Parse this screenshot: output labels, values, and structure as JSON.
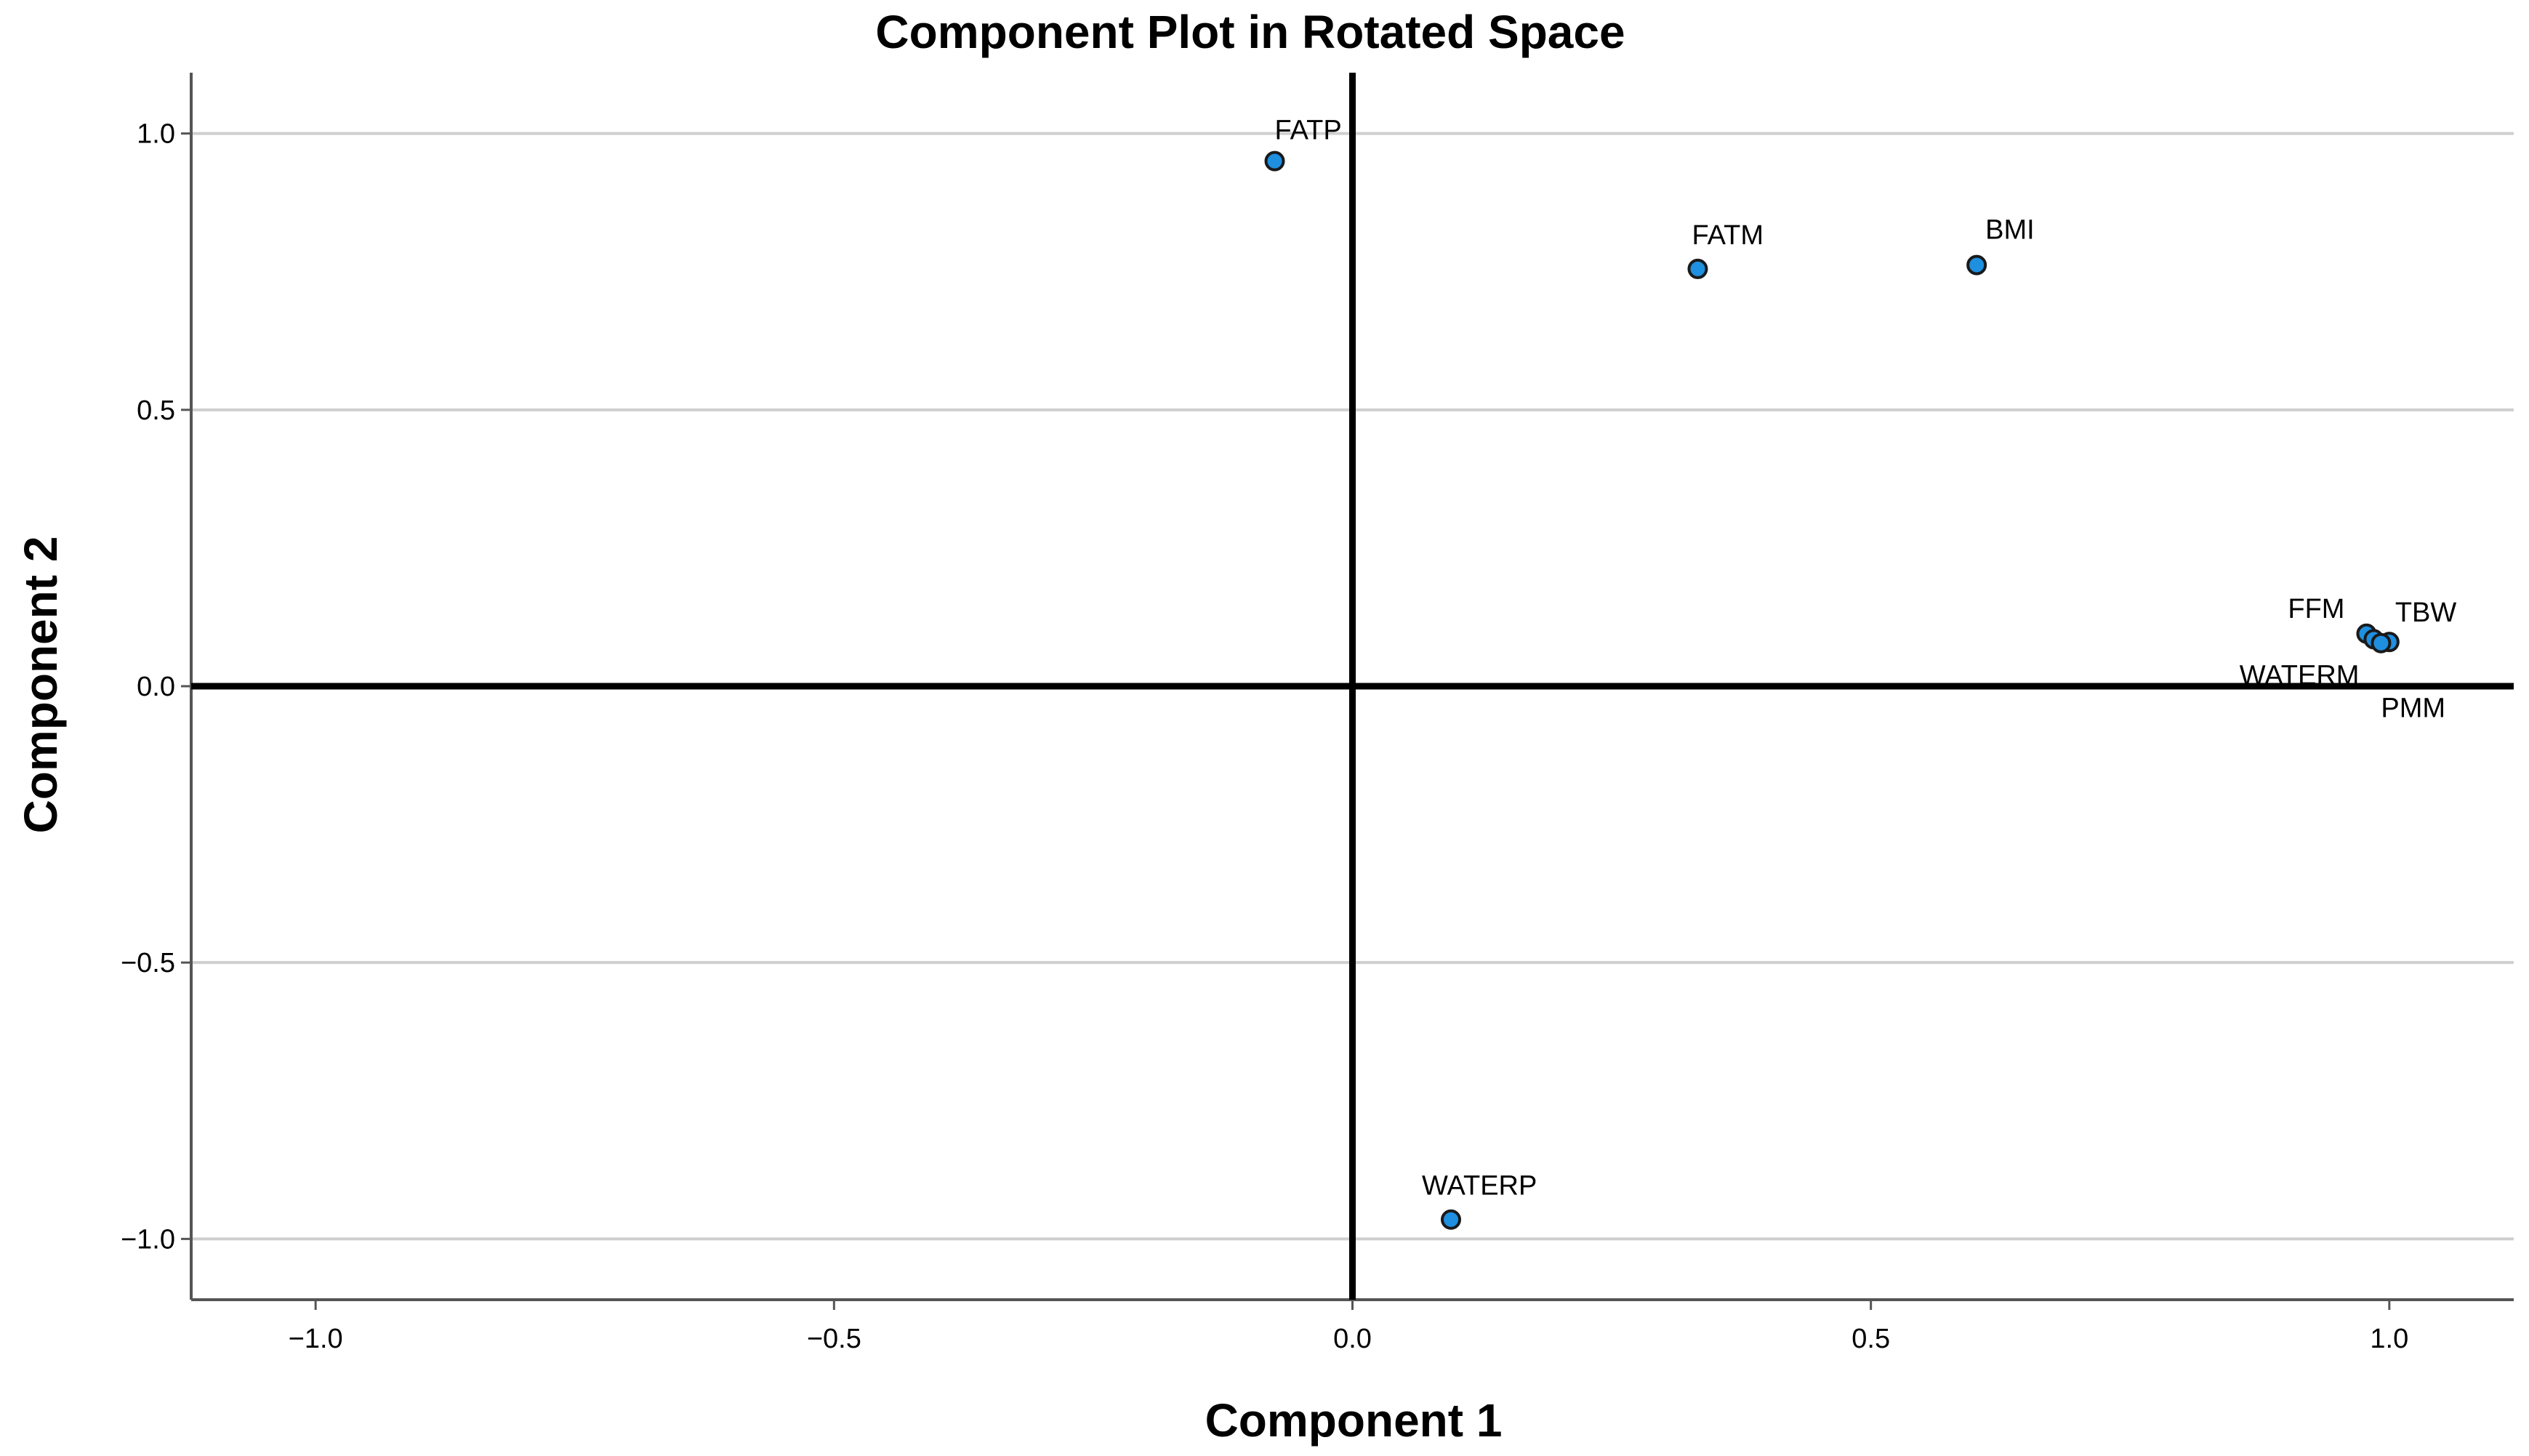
{
  "chart_data": {
    "type": "scatter",
    "title": "Component Plot in Rotated Space",
    "xlabel": "Component 1",
    "ylabel": "Component 2",
    "xlim": [
      -1.12,
      1.12
    ],
    "ylim": [
      -1.11,
      1.11
    ],
    "xticks": [
      -1.0,
      -0.5,
      0.0,
      0.5,
      1.0
    ],
    "xtick_labels": [
      "−1.0",
      "−0.5",
      "0.0",
      "0.5",
      "1.0"
    ],
    "yticks": [
      1.0,
      0.5,
      0.0,
      -0.5,
      -1.0
    ],
    "ytick_labels": [
      "1.0",
      "0.5",
      "0.0",
      "−0.5",
      "−1.0"
    ],
    "grid": "horizontal",
    "reference_lines": {
      "x": 0,
      "y": 0
    },
    "point_color": "#1f8fe0",
    "points": [
      {
        "label": "FATP",
        "x": -0.075,
        "y": 0.95
      },
      {
        "label": "FATM",
        "x": 0.333,
        "y": 0.755
      },
      {
        "label": "BMI",
        "x": 0.602,
        "y": 0.762
      },
      {
        "label": "FFM",
        "x": 0.978,
        "y": 0.095
      },
      {
        "label": "WATERM",
        "x": 0.985,
        "y": 0.085
      },
      {
        "label": "TBW",
        "x": 1.0,
        "y": 0.08
      },
      {
        "label": "PMM",
        "x": 0.992,
        "y": 0.078
      },
      {
        "label": "WATERP",
        "x": 0.095,
        "y": -0.965
      }
    ]
  }
}
